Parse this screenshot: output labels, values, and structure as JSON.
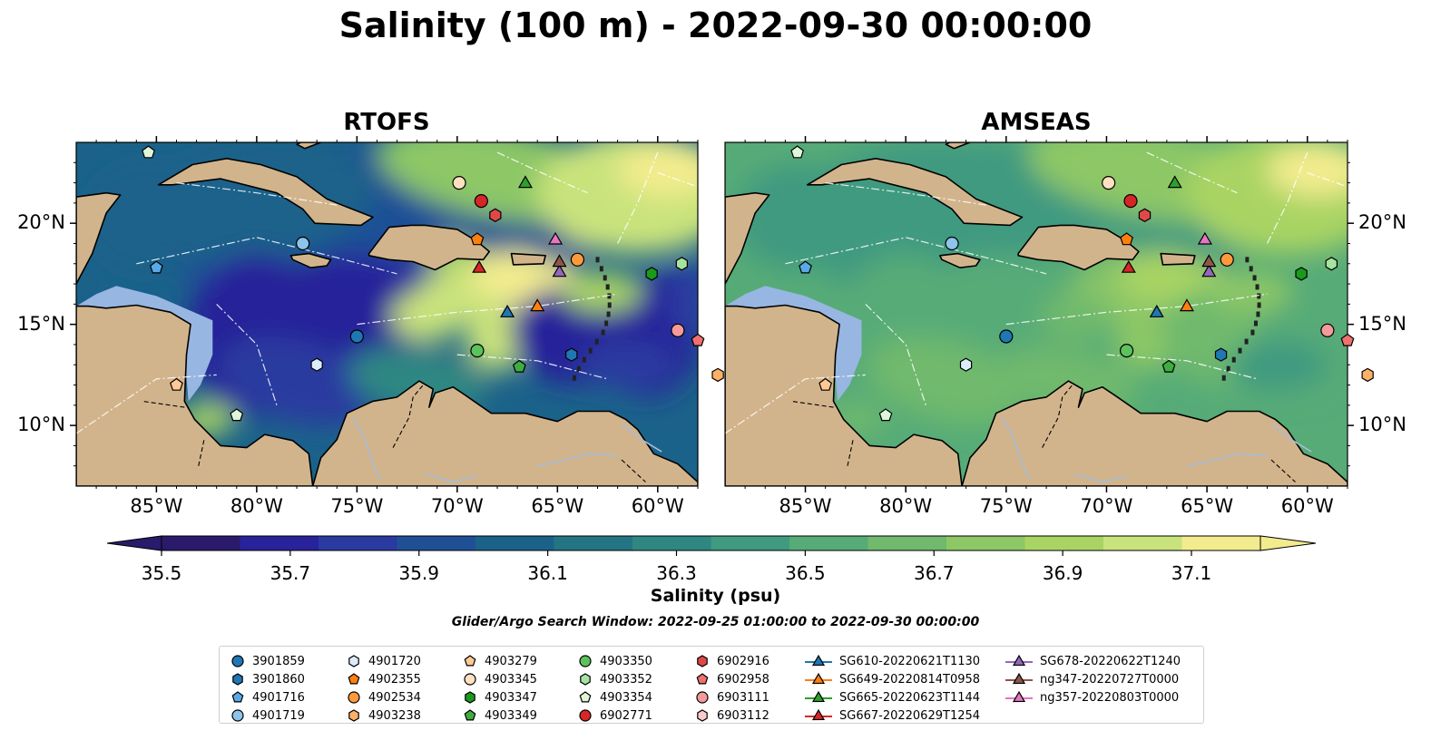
{
  "title": "Salinity (100 m) - 2022-09-30 00:00:00",
  "panels": [
    {
      "title": "RTOFS",
      "palette": "rtofs"
    },
    {
      "title": "AMSEAS",
      "palette": "amseas"
    }
  ],
  "map": {
    "lon_range": [
      -89,
      -58
    ],
    "lat_range": [
      7,
      24
    ],
    "lon_ticks": [
      "85°W",
      "80°W",
      "75°W",
      "70°W",
      "65°W",
      "60°W"
    ],
    "lat_ticks": [
      "20°N",
      "15°N",
      "10°N"
    ],
    "colors": {
      "land": "#d2b48c",
      "shallow": "#97b6e1",
      "coast": "#000000"
    }
  },
  "colorbar": {
    "label": "Salinity (psu)",
    "ticks": [
      "35.5",
      "35.7",
      "35.9",
      "36.1",
      "36.3",
      "36.5",
      "36.7",
      "36.9",
      "37.1"
    ],
    "colors": [
      "#2a1a6b",
      "#28239a",
      "#2a3aa0",
      "#1f5096",
      "#1b628a",
      "#247583",
      "#2f8782",
      "#3f9a80",
      "#56ab77",
      "#70b96d",
      "#8dc766",
      "#a9d464",
      "#c9e37c",
      "#f2ec8e"
    ]
  },
  "search_window": "Glider/Argo Search Window: 2022-09-25 01:00:00 to 2022-09-30 00:00:00",
  "legend": [
    {
      "label": "3901859",
      "marker": "circle",
      "color": "#1f77b4"
    },
    {
      "label": "3901860",
      "marker": "hexagon",
      "color": "#1f77b4"
    },
    {
      "label": "4901716",
      "marker": "pentagon",
      "color": "#5aa9e6"
    },
    {
      "label": "4901719",
      "marker": "circle",
      "color": "#8ec3ea"
    },
    {
      "label": "4901720",
      "marker": "hexagon",
      "color": "#dcecfa"
    },
    {
      "label": "4902355",
      "marker": "pentagon",
      "color": "#ff7f0e"
    },
    {
      "label": "4902534",
      "marker": "circle",
      "color": "#ff9a3c"
    },
    {
      "label": "4903238",
      "marker": "hexagon",
      "color": "#ffb066"
    },
    {
      "label": "4903279",
      "marker": "pentagon",
      "color": "#ffc994"
    },
    {
      "label": "4903345",
      "marker": "circle",
      "color": "#ffe0c0"
    },
    {
      "label": "4903347",
      "marker": "hexagon",
      "color": "#1a9a1a"
    },
    {
      "label": "4903349",
      "marker": "pentagon",
      "color": "#3fae3f"
    },
    {
      "label": "4903350",
      "marker": "circle",
      "color": "#5cc25c"
    },
    {
      "label": "4903352",
      "marker": "hexagon",
      "color": "#a7e3a0"
    },
    {
      "label": "4903354",
      "marker": "pentagon",
      "color": "#dff7d9"
    },
    {
      "label": "6902771",
      "marker": "circle",
      "color": "#d62728"
    },
    {
      "label": "6902916",
      "marker": "hexagon",
      "color": "#e04848"
    },
    {
      "label": "6902958",
      "marker": "pentagon",
      "color": "#f07070"
    },
    {
      "label": "6903111",
      "marker": "circle",
      "color": "#f49a9a"
    },
    {
      "label": "6903112",
      "marker": "hexagon",
      "color": "#fbcaca"
    },
    {
      "label": "SG610-20220621T1130",
      "marker": "triangle",
      "color": "#1f77b4"
    },
    {
      "label": "SG649-20220814T0958",
      "marker": "triangle",
      "color": "#ff7f0e"
    },
    {
      "label": "SG665-20220623T1144",
      "marker": "triangle",
      "color": "#2ca02c"
    },
    {
      "label": "SG667-20220629T1254",
      "marker": "triangle",
      "color": "#d62728"
    },
    {
      "label": "SG678-20220622T1240",
      "marker": "triangle",
      "color": "#9467bd"
    },
    {
      "label": "ng347-20220727T0000",
      "marker": "triangle",
      "color": "#8c564b"
    },
    {
      "label": "ng357-20220803T0000",
      "marker": "triangle",
      "color": "#e377c2"
    }
  ],
  "platforms": [
    {
      "id": "3901859",
      "lon": -75.0,
      "lat": 14.4
    },
    {
      "id": "3901860",
      "lon": -64.3,
      "lat": 13.5
    },
    {
      "id": "4901716",
      "lon": -85.0,
      "lat": 17.8
    },
    {
      "id": "4901719",
      "lon": -77.7,
      "lat": 19.0
    },
    {
      "id": "4901720",
      "lon": -77.0,
      "lat": 13.0
    },
    {
      "id": "4902355",
      "lon": -69.0,
      "lat": 19.2
    },
    {
      "id": "4902534",
      "lon": -64.0,
      "lat": 18.2
    },
    {
      "id": "4903238",
      "lon": -57.0,
      "lat": 12.5
    },
    {
      "id": "4903279",
      "lon": -84.0,
      "lat": 12.0
    },
    {
      "id": "4903345",
      "lon": -69.9,
      "lat": 22.0
    },
    {
      "id": "4903347",
      "lon": -60.3,
      "lat": 17.5
    },
    {
      "id": "4903349",
      "lon": -66.9,
      "lat": 12.9
    },
    {
      "id": "4903350",
      "lon": -69.0,
      "lat": 13.7
    },
    {
      "id": "4903352",
      "lon": -58.8,
      "lat": 18.0
    },
    {
      "id": "4903354",
      "lon": -85.4,
      "lat": 23.5
    },
    {
      "id": "4903354b",
      "lon": -81.0,
      "lat": 10.5
    },
    {
      "id": "6902771",
      "lon": -68.8,
      "lat": 21.1
    },
    {
      "id": "6902916",
      "lon": -68.1,
      "lat": 20.4
    },
    {
      "id": "6902958",
      "lon": -58.0,
      "lat": 14.2
    },
    {
      "id": "6903111",
      "lon": -59.0,
      "lat": 14.7
    },
    {
      "id": "SG610-20220621T1130",
      "lon": -67.5,
      "lat": 15.6
    },
    {
      "id": "SG649-20220814T0958",
      "lon": -66.0,
      "lat": 15.9
    },
    {
      "id": "SG665-20220623T1144",
      "lon": -66.6,
      "lat": 22.0
    },
    {
      "id": "SG667-20220629T1254",
      "lon": -68.9,
      "lat": 17.8
    },
    {
      "id": "SG678-20220622T1240",
      "lon": -64.9,
      "lat": 17.6
    },
    {
      "id": "ng347-20220727T0000",
      "lon": -64.9,
      "lat": 18.1
    },
    {
      "id": "ng357-20220803T0000",
      "lon": -65.1,
      "lat": 19.2
    }
  ]
}
